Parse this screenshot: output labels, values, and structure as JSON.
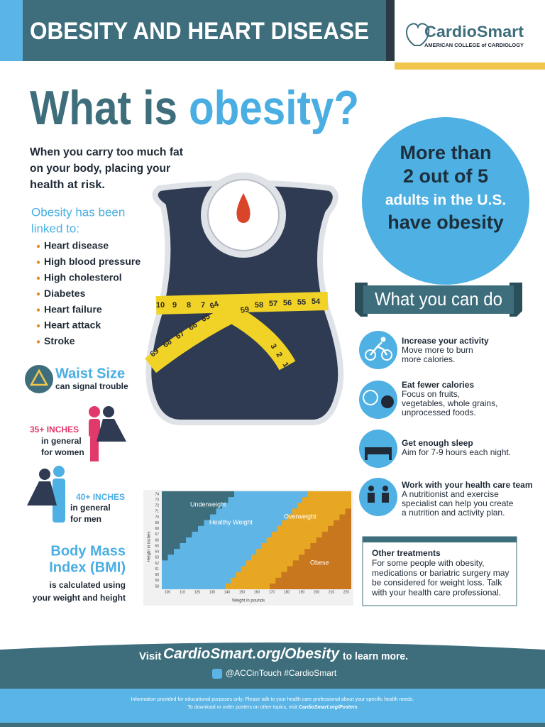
{
  "header": {
    "title": "OBESITY AND HEART DISEASE",
    "logo_name": "CardioSmart",
    "logo_subtitle": "AMERICAN COLLEGE of CARDIOLOGY"
  },
  "headline": {
    "part1": "What is",
    "part2": "obesity?"
  },
  "intro": [
    "When you carry too much fat",
    "on your body, placing your",
    "health at risk."
  ],
  "linked": {
    "heading": [
      "Obesity has been",
      "linked to:"
    ],
    "items": [
      "Heart disease",
      "High blood pressure",
      "High cholesterol",
      "Diabetes",
      "Heart failure",
      "Heart attack",
      "Stroke"
    ]
  },
  "stat": [
    "More than",
    "2 out of 5",
    "adults in the U.S.",
    "have obesity"
  ],
  "tape": [
    "10",
    "9",
    "8",
    "7",
    "64",
    "65",
    "66",
    "67",
    "68",
    "69",
    "59",
    "58",
    "57",
    "56",
    "55",
    "54",
    "3",
    "2",
    "1"
  ],
  "waist": {
    "title": "Waist Size",
    "subtitle": "can signal trouble",
    "women": {
      "label": "35+ INCHES",
      "lines": [
        "in general",
        "for women"
      ]
    },
    "men": {
      "label": "40+ INCHES",
      "lines": [
        "in general",
        "for men"
      ]
    }
  },
  "bmi": {
    "title": [
      "Body Mass",
      "Index (BMI)"
    ],
    "description": [
      "is calculated using",
      "your weight and height"
    ],
    "chart": {
      "xticks": [
        100,
        110,
        120,
        130,
        140,
        150,
        160,
        170,
        180,
        190,
        200,
        210,
        220
      ],
      "yticks": [
        58,
        59,
        60,
        61,
        62,
        63,
        64,
        65,
        66,
        67,
        68,
        69,
        70,
        71,
        72,
        73,
        74
      ],
      "xlabel": "Weight in pounds",
      "ylabel": "Height in inches",
      "regions": [
        "Underweight",
        "Healthy Weight",
        "Overweight",
        "Obese"
      ]
    }
  },
  "actions": {
    "heading": "What you can do",
    "items": [
      {
        "title": "Increase your activity",
        "lines": [
          "Move more to burn",
          "more calories."
        ]
      },
      {
        "title": "Eat fewer calories",
        "lines": [
          "Focus on fruits,",
          "vegetables, whole grains,",
          "unprocessed foods."
        ]
      },
      {
        "title": "Get enough sleep",
        "lines": [
          "Aim for 7-9 hours each night."
        ]
      },
      {
        "title": "Work with your health care team",
        "lines": [
          "A nutritionist and exercise",
          "specialist can help you create",
          "a nutrition and activity plan."
        ]
      }
    ]
  },
  "other": {
    "title": "Other treatments",
    "lines": [
      "For some people with obesity,",
      "medications or bariatric surgery may",
      "be considered for weight loss. Talk",
      "with your health care professional."
    ]
  },
  "footer": {
    "visit": "Visit",
    "url": "CardioSmart.org/Obesity",
    "tail": "to learn more.",
    "social": "@ACCinTouch #CardioSmart",
    "disclaimer": "Information provided for educational purposes only. Please talk to your health care professional about your specific health needs.",
    "download": "To download or order posters on other topics, visit",
    "download_url": "CardioSmart.org/Posters"
  }
}
